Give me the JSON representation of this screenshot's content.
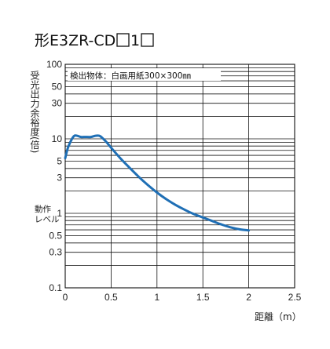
{
  "title": {
    "prefix": "形E3ZR-CD",
    "middle": "1"
  },
  "chart_data": {
    "type": "line",
    "annotation": "検出物体：白画用紙300×300㎜",
    "ylabel": "受光出力余裕度(倍)",
    "xlabel": "距離（m）",
    "yscale": "log",
    "ylim": [
      0.1,
      100
    ],
    "xlim": [
      0,
      2.5
    ],
    "yticks": [
      {
        "value": 100,
        "label": "100"
      },
      {
        "value": 50,
        "label": "50"
      },
      {
        "value": 30,
        "label": "30"
      },
      {
        "value": 10,
        "label": "10"
      },
      {
        "value": 5,
        "label": "5"
      },
      {
        "value": 3,
        "label": "3"
      },
      {
        "value": 1,
        "label": "1"
      },
      {
        "value": 0.5,
        "label": "0.5"
      },
      {
        "value": 0.3,
        "label": "0.3"
      },
      {
        "value": 0.1,
        "label": "0.1"
      }
    ],
    "xticks": [
      {
        "value": 0,
        "label": "0"
      },
      {
        "value": 0.5,
        "label": "0.5"
      },
      {
        "value": 1,
        "label": "1"
      },
      {
        "value": 1.5,
        "label": "1.5"
      },
      {
        "value": 2,
        "label": "2"
      },
      {
        "value": 2.5,
        "label": "2.5"
      }
    ],
    "operating_level": {
      "value": 1,
      "label_line1": "動作",
      "label_line2": "レベル"
    },
    "grid": true,
    "series": [
      {
        "color": "#1f6fb5",
        "x": [
          0.0,
          0.03,
          0.07,
          0.1,
          0.13,
          0.17,
          0.22,
          0.28,
          0.33,
          0.37,
          0.4,
          0.45,
          0.5,
          0.6,
          0.7,
          0.8,
          0.9,
          1.0,
          1.1,
          1.2,
          1.3,
          1.4,
          1.5,
          1.6,
          1.7,
          1.8,
          1.9,
          2.0
        ],
        "y": [
          5.5,
          7.6,
          9.8,
          11.0,
          11.0,
          10.6,
          10.6,
          10.6,
          11.0,
          11.0,
          10.4,
          9.0,
          7.6,
          5.5,
          4.1,
          3.1,
          2.4,
          1.9,
          1.55,
          1.3,
          1.12,
          0.98,
          0.88,
          0.79,
          0.71,
          0.65,
          0.61,
          0.59
        ]
      }
    ]
  }
}
